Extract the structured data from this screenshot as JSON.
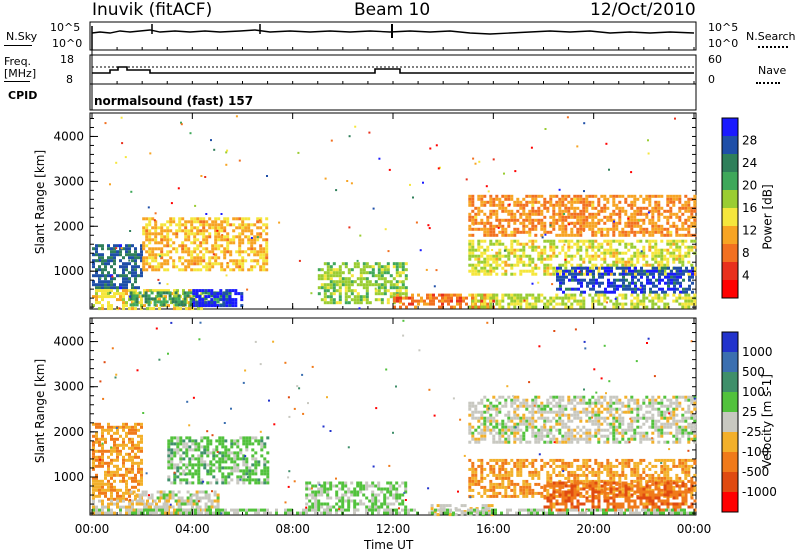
{
  "header": {
    "title": "Inuvik (fitACF)",
    "beam": "Beam 10",
    "date": "12/Oct/2010"
  },
  "mini_panels": {
    "nsky": {
      "label": "N.Sky",
      "ticks": [
        "10^5",
        "10^0"
      ]
    },
    "nsearch": {
      "label": "N.Search",
      "ticks": [
        "10^5",
        "10^0"
      ]
    },
    "freq": {
      "label": "Freq.",
      "unit": "[MHz]",
      "ticks": [
        "18",
        "8"
      ]
    },
    "nave": {
      "label": "Nave",
      "ticks": [
        "60",
        "0"
      ]
    },
    "cpid": {
      "label": "CPID",
      "value": "normalsound (fast) 157"
    }
  },
  "x_axis": {
    "label": "Time UT",
    "ticks": [
      "00:00",
      "04:00",
      "08:00",
      "12:00",
      "16:00",
      "20:00",
      "00:00"
    ]
  },
  "power_panel": {
    "ylabel": "Slant Range [km]",
    "yticks": [
      "4000",
      "3000",
      "2000",
      "1000"
    ],
    "colorbar_label": "Power [dB]",
    "colorbar_ticks": [
      "28",
      "24",
      "20",
      "16",
      "12",
      "8",
      "4"
    ]
  },
  "velocity_panel": {
    "ylabel": "Slant Range [km]",
    "yticks": [
      "4000",
      "3000",
      "2000",
      "1000"
    ],
    "colorbar_label": "Velocity [m s-1]",
    "colorbar_ticks": [
      "1000",
      "500",
      "100",
      "25",
      "-25",
      "-100",
      "-500",
      "-1000"
    ]
  },
  "colors": {
    "power_scale": [
      "#1a1aff",
      "#1f4fa8",
      "#2f7f5a",
      "#3fa85a",
      "#9acd32",
      "#f5e63c",
      "#f7a423",
      "#f27020",
      "#e8301c",
      "#ff0000"
    ],
    "velocity_scale": [
      "#2233cc",
      "#3b6fb0",
      "#3f8f6a",
      "#52c23c",
      "#c8c8c0",
      "#f3b02a",
      "#f07a1a",
      "#e04a10",
      "#ff0000"
    ]
  },
  "chart_data": [
    {
      "type": "heatmap",
      "title": "Power",
      "xlabel": "Time UT",
      "ylabel": "Slant Range [km]",
      "xlim": [
        "00:00",
        "24:00"
      ],
      "ylim": [
        180,
        4500
      ],
      "colorbar": {
        "label": "Power [dB]",
        "range": [
          0,
          32
        ]
      },
      "regions": [
        {
          "t": [
            0.0,
            2.0
          ],
          "r": [
            600,
            1600
          ],
          "v": 26
        },
        {
          "t": [
            0.0,
            4.5
          ],
          "r": [
            180,
            600
          ],
          "v": 14
        },
        {
          "t": [
            1.5,
            5.5
          ],
          "r": [
            250,
            550
          ],
          "v": 22
        },
        {
          "t": [
            2.0,
            7.0
          ],
          "r": [
            1000,
            2200
          ],
          "v": 12
        },
        {
          "t": [
            4.0,
            6.0
          ],
          "r": [
            200,
            600
          ],
          "v": 30
        },
        {
          "t": [
            9.0,
            12.5
          ],
          "r": [
            300,
            1200
          ],
          "v": 18
        },
        {
          "t": [
            12.0,
            16.0
          ],
          "r": [
            180,
            500
          ],
          "v": 8
        },
        {
          "t": [
            15.0,
            24.0
          ],
          "r": [
            1800,
            2700
          ],
          "v": 10
        },
        {
          "t": [
            15.0,
            24.0
          ],
          "r": [
            900,
            1700
          ],
          "v": 15
        },
        {
          "t": [
            18.5,
            24.0
          ],
          "r": [
            500,
            1100
          ],
          "v": 28
        },
        {
          "t": [
            15.0,
            24.0
          ],
          "r": [
            180,
            500
          ],
          "v": 16
        }
      ]
    },
    {
      "type": "heatmap",
      "title": "Velocity",
      "xlabel": "Time UT",
      "ylabel": "Slant Range [km]",
      "xlim": [
        "00:00",
        "24:00"
      ],
      "ylim": [
        180,
        4500
      ],
      "colorbar": {
        "label": "Velocity [m s-1]",
        "range": [
          -1000,
          1000
        ]
      },
      "regions": [
        {
          "t": [
            0.0,
            2.0
          ],
          "r": [
            500,
            2200
          ],
          "v": -300
        },
        {
          "t": [
            0.0,
            4.0
          ],
          "r": [
            180,
            500
          ],
          "v": -150
        },
        {
          "t": [
            1.5,
            5.0
          ],
          "r": [
            200,
            700
          ],
          "v": 0
        },
        {
          "t": [
            3.0,
            7.0
          ],
          "r": [
            900,
            1900
          ],
          "v": 200
        },
        {
          "t": [
            8.5,
            12.5
          ],
          "r": [
            300,
            900
          ],
          "v": 150
        },
        {
          "t": [
            13.5,
            16.0
          ],
          "r": [
            180,
            400
          ],
          "v": 0
        },
        {
          "t": [
            15.0,
            24.0
          ],
          "r": [
            1800,
            2800
          ],
          "v": 0
        },
        {
          "t": [
            15.0,
            24.0
          ],
          "r": [
            600,
            1400
          ],
          "v": -300
        },
        {
          "t": [
            18.0,
            24.0
          ],
          "r": [
            300,
            900
          ],
          "v": -500
        },
        {
          "t": [
            0.0,
            24.0
          ],
          "r": [
            180,
            300
          ],
          "v": 80
        }
      ]
    }
  ]
}
